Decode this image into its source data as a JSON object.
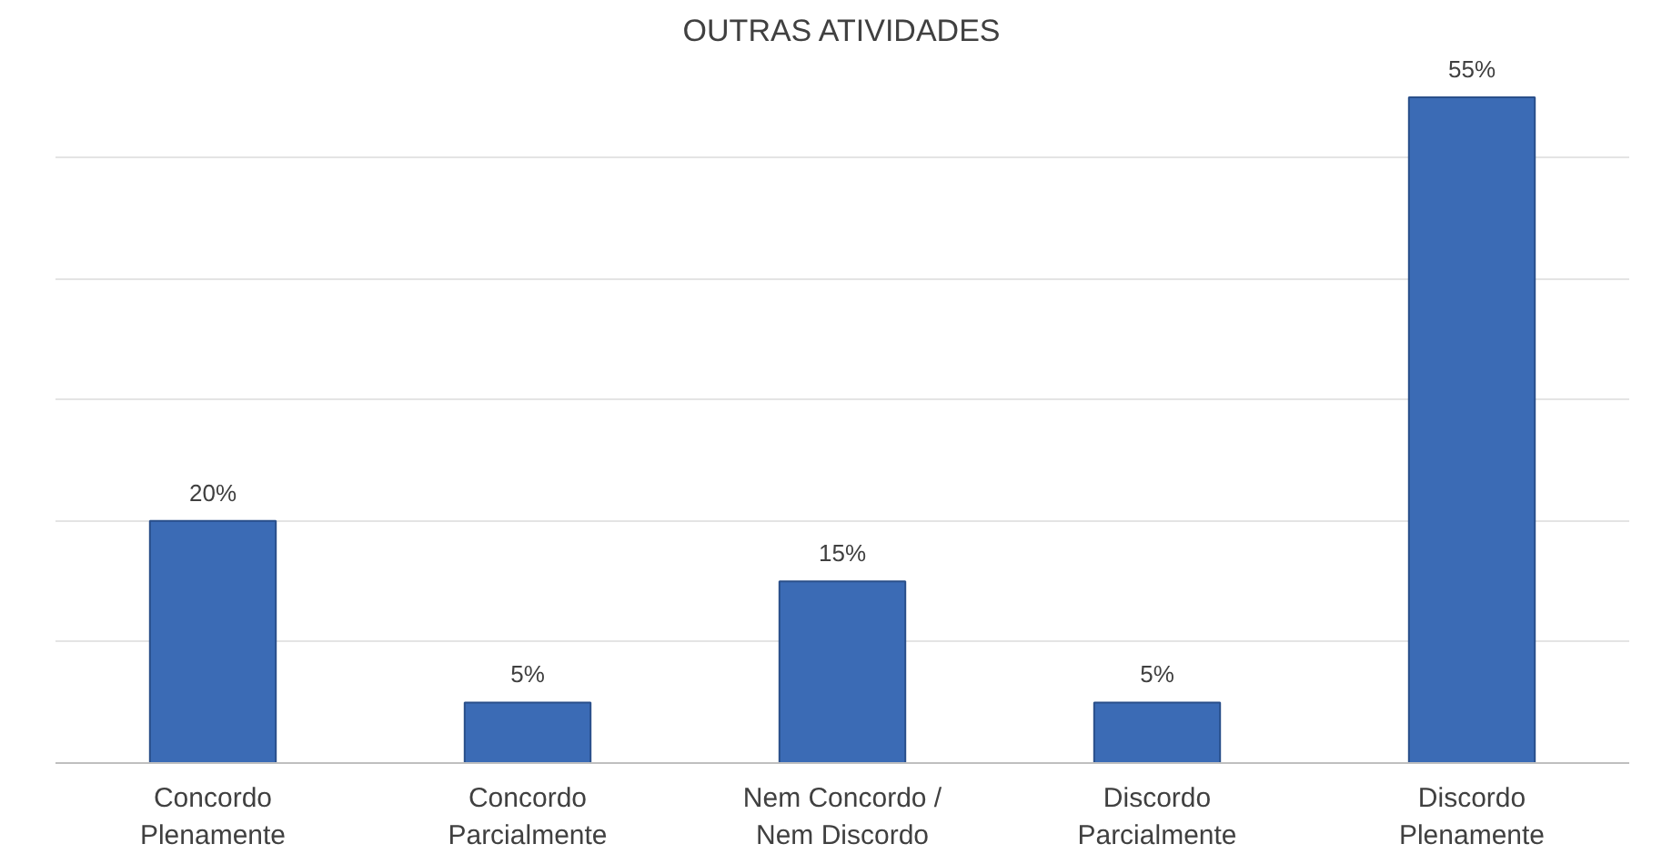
{
  "chart_data": {
    "type": "bar",
    "title": "OUTRAS ATIVIDADES",
    "categories": [
      "Concordo Plenamente",
      "Concordo Parcialmente",
      "Nem Concordo / Nem Discordo",
      "Discordo Parcialmente",
      "Discordo Plenamente"
    ],
    "values": [
      20,
      5,
      15,
      5,
      55
    ],
    "value_labels": [
      "20%",
      "5%",
      "15%",
      "5%",
      "55%"
    ],
    "color": "#3b6bb5",
    "grid": "y",
    "tick_labels": "x"
  }
}
